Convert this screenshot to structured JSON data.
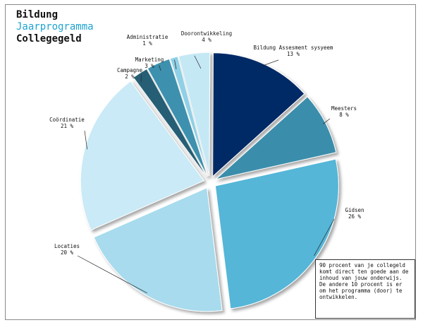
{
  "chart_data": {
    "type": "pie",
    "title": "Bildung",
    "subtitle": "Jaarprogramma",
    "subtitle2": "Collegegeld",
    "slices": [
      {
        "label": "Bildung Assesment sysyeem",
        "value": 13,
        "display": "13 %",
        "color": "#062a66"
      },
      {
        "label": "Meesters",
        "value": 8,
        "display": "8 %",
        "color": "#3a8eab"
      },
      {
        "label": "Gidsen",
        "value": 26,
        "display": "26 %",
        "color": "#55b6d7"
      },
      {
        "label": "Locaties",
        "value": 20,
        "display": "20 %",
        "color": "#a7dbed"
      },
      {
        "label": "Coördinatie",
        "value": 21,
        "display": "21 %",
        "color": "#c9eaf6"
      },
      {
        "label": "Campagne",
        "value": 2,
        "display": "2 %",
        "color": "#265f75"
      },
      {
        "label": "Marketing",
        "value": 3,
        "display": "3 %",
        "color": "#3c91ae"
      },
      {
        "label": "Administratie",
        "value": 1,
        "display": "1 %",
        "color": "#8fd0e6"
      },
      {
        "label": "Doorontwikkeling",
        "value": 4,
        "display": "4 %",
        "color": "#c5e8f5"
      }
    ],
    "note": "90 procent van je collegeld\nkomt direct ten goede aan de inhoud van jouw onderwijs. De andere 10 procent is er om het programma (door) te ontwikkelen."
  }
}
